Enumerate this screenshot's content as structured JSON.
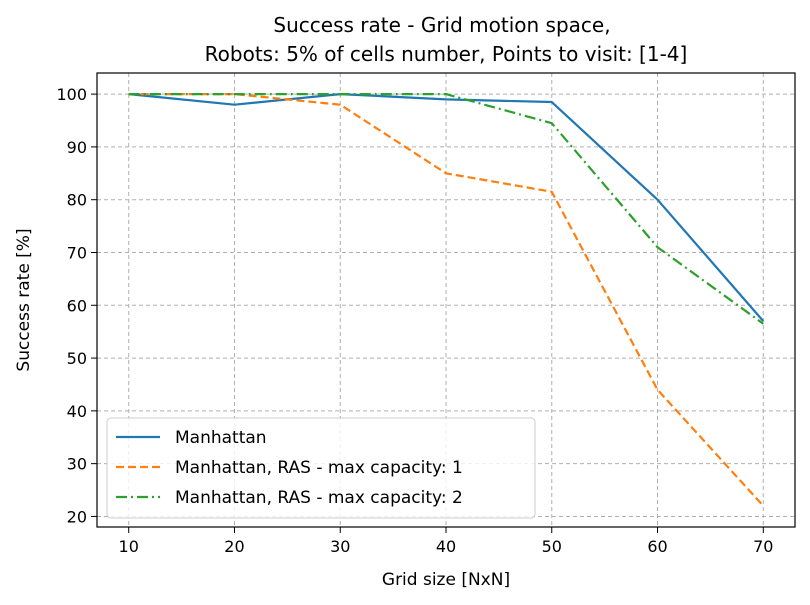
{
  "chart_data": {
    "type": "line",
    "title_line1": "Success rate - Grid motion space,",
    "title_line2": "Robots: 5% of cells number, Points to visit: [1-4]",
    "xlabel": "Grid size [NxN]",
    "ylabel": "Success rate [%]",
    "x": [
      10,
      20,
      30,
      40,
      50,
      60,
      70
    ],
    "xlim": [
      7,
      73
    ],
    "ylim": [
      18,
      104
    ],
    "xticks": [
      10,
      20,
      30,
      40,
      50,
      60,
      70
    ],
    "yticks": [
      20,
      30,
      40,
      50,
      60,
      70,
      80,
      90,
      100
    ],
    "grid": true,
    "legend_position": "lower-left",
    "series": [
      {
        "name": "Manhattan",
        "values": [
          100,
          98,
          100,
          99,
          98.5,
          80,
          57
        ],
        "color": "#1f77b4",
        "dash": "solid"
      },
      {
        "name": "Manhattan, RAS - max capacity: 1",
        "values": [
          100,
          100,
          98,
          85,
          81.5,
          44,
          22
        ],
        "color": "#ff7f0e",
        "dash": "dashed"
      },
      {
        "name": "Manhattan, RAS - max capacity: 2",
        "values": [
          100,
          100,
          100,
          100,
          94.5,
          71,
          56.5
        ],
        "color": "#2ca02c",
        "dashdot": true,
        "dash": "dashdot"
      }
    ]
  }
}
